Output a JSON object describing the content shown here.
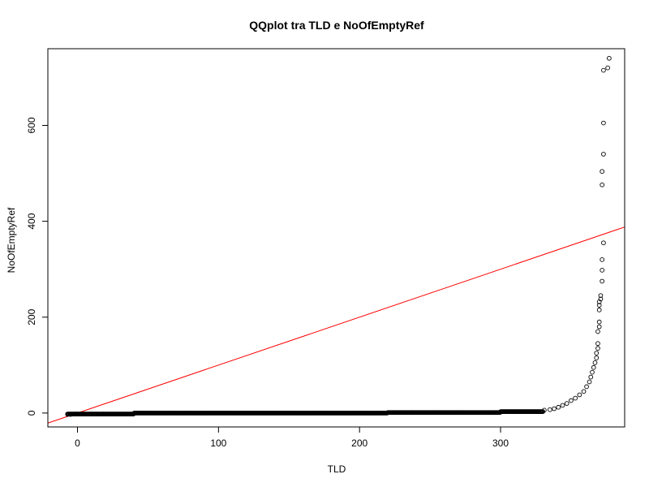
{
  "chart_data": {
    "type": "scatter",
    "title": "QQplot tra TLD e NoOfEmptyRef",
    "xlabel": "TLD",
    "ylabel": "NoOfEmptyRef",
    "xlim": [
      -21,
      388
    ],
    "ylim": [
      -29,
      760
    ],
    "xticks": [
      0,
      100,
      200,
      300
    ],
    "yticks": [
      0,
      200,
      400,
      600
    ],
    "grid": false,
    "legend": "none",
    "point_color": "#000000",
    "reference_line": {
      "intercept": 0,
      "slope": 1,
      "color": "#ff0000"
    },
    "notes": "Flat run of points at y=0 from about x=-7 to x=330; tail points listed below",
    "flat_segment": {
      "x_start": -7,
      "x_end": 330,
      "y": 0,
      "count": 700
    },
    "series": [
      {
        "points": [
          [
            -7,
            -3
          ],
          [
            -5,
            -3
          ],
          [
            -2,
            -2
          ],
          [
            0,
            -2
          ],
          [
            2,
            -2
          ],
          [
            4,
            -2
          ],
          [
            331,
            6
          ],
          [
            335,
            7
          ],
          [
            338,
            9
          ],
          [
            341,
            12
          ],
          [
            344,
            16
          ],
          [
            347,
            20
          ],
          [
            350,
            26
          ],
          [
            353,
            31
          ],
          [
            356,
            38
          ],
          [
            359,
            45
          ],
          [
            361,
            55
          ],
          [
            363,
            65
          ],
          [
            364,
            75
          ],
          [
            365,
            85
          ],
          [
            366,
            95
          ],
          [
            367,
            105
          ],
          [
            368,
            115
          ],
          [
            368,
            125
          ],
          [
            369,
            135
          ],
          [
            369,
            145
          ],
          [
            369,
            170
          ],
          [
            370,
            180
          ],
          [
            370,
            190
          ],
          [
            370,
            215
          ],
          [
            370,
            225
          ],
          [
            370,
            232
          ],
          [
            371,
            238
          ],
          [
            371,
            245
          ],
          [
            372,
            275
          ],
          [
            372,
            298
          ],
          [
            372,
            320
          ],
          [
            373,
            355
          ],
          [
            372,
            476
          ],
          [
            372,
            504
          ],
          [
            373,
            540
          ],
          [
            373,
            605
          ],
          [
            373,
            715
          ],
          [
            376,
            720
          ],
          [
            377,
            740
          ]
        ]
      }
    ]
  }
}
